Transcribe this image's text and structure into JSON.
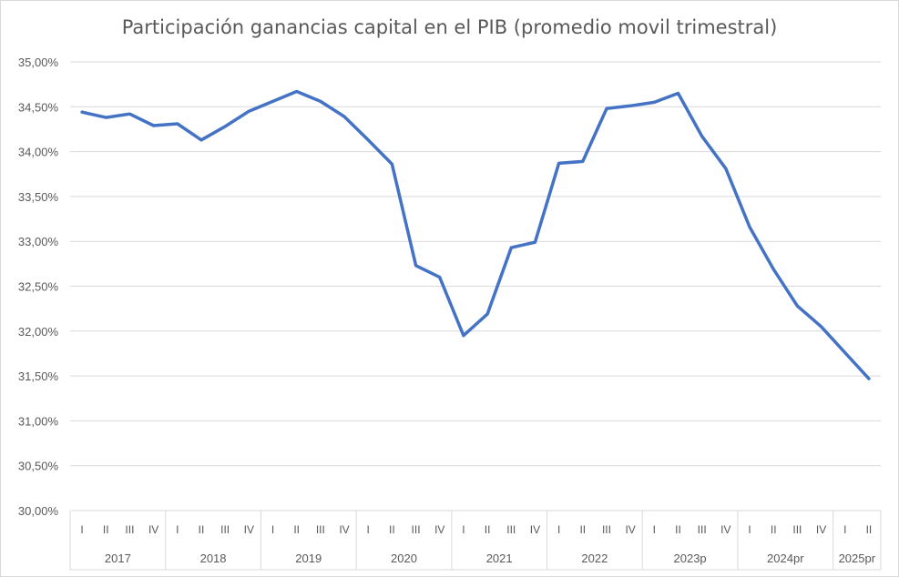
{
  "chart_data": {
    "type": "line",
    "title": "Participación ganancias capital en el PIB (promedio movil trimestral)",
    "xlabel": "",
    "ylabel": "",
    "ylim": [
      30.0,
      35.0
    ],
    "yticks": [
      "30,00%",
      "30,50%",
      "31,00%",
      "31,50%",
      "32,00%",
      "32,50%",
      "33,00%",
      "33,50%",
      "34,00%",
      "34,50%",
      "35,00%"
    ],
    "grid": true,
    "legend": "none",
    "color": "#4472C4",
    "groups": [
      {
        "label": "2017",
        "quarters": [
          "I",
          "II",
          "III",
          "IV"
        ]
      },
      {
        "label": "2018",
        "quarters": [
          "I",
          "II",
          "III",
          "IV"
        ]
      },
      {
        "label": "2019",
        "quarters": [
          "I",
          "II",
          "III",
          "IV"
        ]
      },
      {
        "label": "2020",
        "quarters": [
          "I",
          "II",
          "III",
          "IV"
        ]
      },
      {
        "label": "2021",
        "quarters": [
          "I",
          "II",
          "III",
          "IV"
        ]
      },
      {
        "label": "2022",
        "quarters": [
          "I",
          "II",
          "III",
          "IV"
        ]
      },
      {
        "label": "2023p",
        "quarters": [
          "I",
          "II",
          "III",
          "IV"
        ]
      },
      {
        "label": "2024pr",
        "quarters": [
          "I",
          "II",
          "III",
          "IV"
        ]
      },
      {
        "label": "2025pr",
        "quarters": [
          "I",
          "II"
        ]
      }
    ],
    "values": [
      34.44,
      34.38,
      34.42,
      34.29,
      34.31,
      34.13,
      34.28,
      34.45,
      34.56,
      34.67,
      34.56,
      34.39,
      34.13,
      33.86,
      32.73,
      32.6,
      31.95,
      32.19,
      32.93,
      32.99,
      33.87,
      33.89,
      34.48,
      34.51,
      34.55,
      34.65,
      34.17,
      33.81,
      33.16,
      32.69,
      32.28,
      32.05,
      31.76,
      31.47
    ]
  }
}
